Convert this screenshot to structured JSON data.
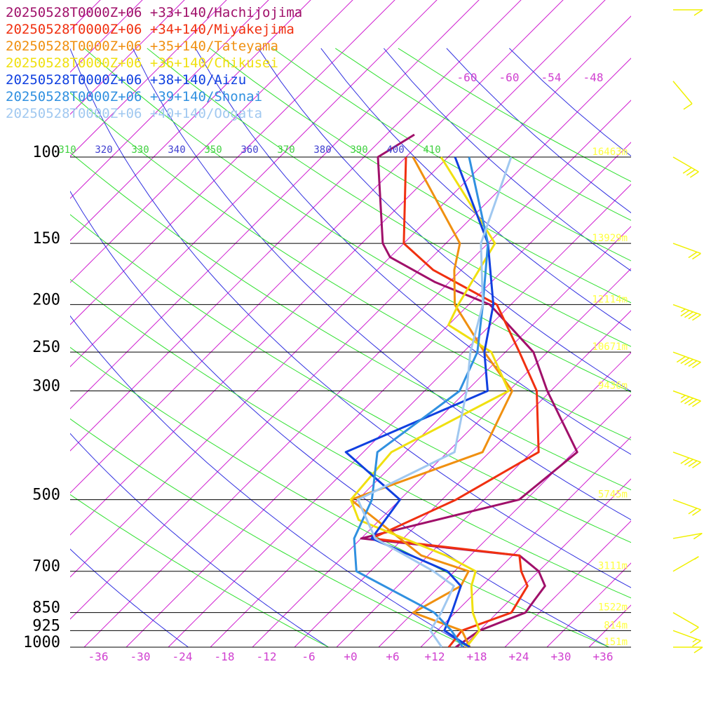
{
  "colors": {
    "isobar": "#000000",
    "isotherm": "#d020d0",
    "dry_adiabat": "#3030e0",
    "moist_adiabat": "#30e030",
    "height_label": "#ffff40",
    "wind_barb": "#f0f000",
    "temp_label": "#d040d0",
    "theta_label_blue": "#4040d0",
    "theta_label_green": "#40d040"
  },
  "legend": [
    {
      "label": "20250528T0000Z+06 +33+140/Hachijojima",
      "color": "#a0106a"
    },
    {
      "label": "20250528T0000Z+06 +34+140/Miyakejima",
      "color": "#f03010"
    },
    {
      "label": "20250528T0000Z+06 +35+140/Tateyama",
      "color": "#f09010"
    },
    {
      "label": "20250528T0000Z+06 +36+140/Chikusei",
      "color": "#f0e010"
    },
    {
      "label": "20250528T0000Z+06 +38+140/Aizu",
      "color": "#1040e0"
    },
    {
      "label": "20250528T0000Z+06 +39+140/Shonai",
      "color": "#3090e0"
    },
    {
      "label": "20250528T0000Z+06 +40+140/Oogata",
      "color": "#a0c8f0"
    }
  ],
  "axes": {
    "pressure_labels": [
      "100",
      "150",
      "200",
      "250",
      "300",
      "500",
      "700",
      "850",
      "925",
      "1000"
    ],
    "pressure_values": [
      100,
      150,
      200,
      250,
      300,
      500,
      700,
      850,
      925,
      1000
    ],
    "temp_labels": [
      "-36",
      "-30",
      "-24",
      "-18",
      "-12",
      "-6",
      "+0",
      "+6",
      "+12",
      "+18",
      "+24",
      "+30",
      "+36"
    ],
    "temp_values": [
      -36,
      -30,
      -24,
      -18,
      -12,
      -6,
      0,
      6,
      12,
      18,
      24,
      30,
      36
    ],
    "upper_temp_labels": [
      "-60",
      "-60",
      "-54",
      "-48"
    ],
    "theta_labels": [
      {
        "text": "310",
        "color": "theta_label_green"
      },
      {
        "text": "320",
        "color": "theta_label_blue"
      },
      {
        "text": "330",
        "color": "theta_label_green"
      },
      {
        "text": "340",
        "color": "theta_label_blue"
      },
      {
        "text": "350",
        "color": "theta_label_green"
      },
      {
        "text": "360",
        "color": "theta_label_blue"
      },
      {
        "text": "370",
        "color": "theta_label_green"
      },
      {
        "text": "380",
        "color": "theta_label_blue"
      },
      {
        "text": "390",
        "color": "theta_label_green"
      },
      {
        "text": "400",
        "color": "theta_label_blue"
      },
      {
        "text": "410",
        "color": "theta_label_green"
      }
    ],
    "height_labels": [
      {
        "p": 100,
        "text": "16463m"
      },
      {
        "p": 150,
        "text": "13929m"
      },
      {
        "p": 200,
        "text": "12114m"
      },
      {
        "p": 250,
        "text": "10671m"
      },
      {
        "p": 300,
        "text": "9436m"
      },
      {
        "p": 500,
        "text": "5745m"
      },
      {
        "p": 700,
        "text": "3111m"
      },
      {
        "p": 850,
        "text": "1522m"
      },
      {
        "p": 925,
        "text": "814m"
      },
      {
        "p": 1000,
        "text": "151m"
      }
    ]
  },
  "chart_data": {
    "type": "line",
    "title": "",
    "xlabel": "",
    "ylabel": "",
    "x_unit": "°C (skewed)",
    "y_unit": "hPa",
    "ylim": [
      1000,
      100
    ],
    "xlim": [
      -40,
      40
    ],
    "series": [
      {
        "name": "20250528T0000Z+06 +33+140/Hachijojima",
        "points": [
          [
            1000,
            15.0
          ],
          [
            925,
            16.0
          ],
          [
            850,
            20.0
          ],
          [
            800,
            19.5
          ],
          [
            750,
            19.0
          ],
          [
            700,
            16.0
          ],
          [
            650,
            11.0
          ],
          [
            600,
            -14.0
          ],
          [
            500,
            3.0
          ],
          [
            400,
            4.5
          ],
          [
            300,
            -8.5
          ],
          [
            250,
            -16.0
          ],
          [
            200,
            -29.0
          ],
          [
            180,
            -40.0
          ],
          [
            160,
            -50.0
          ],
          [
            150,
            -53.0
          ],
          [
            100,
            -66.0
          ],
          [
            90,
            -64.0
          ]
        ]
      },
      {
        "name": "20250528T0000Z+06 +34+140/Miyakejima",
        "points": [
          [
            1000,
            14.0
          ],
          [
            925,
            13.5
          ],
          [
            850,
            18.0
          ],
          [
            750,
            16.5
          ],
          [
            700,
            13.5
          ],
          [
            650,
            11.0
          ],
          [
            600,
            -12.5
          ],
          [
            500,
            -6.0
          ],
          [
            400,
            -1.0
          ],
          [
            300,
            -10.0
          ],
          [
            250,
            -18.0
          ],
          [
            200,
            -28.0
          ],
          [
            170,
            -42.0
          ],
          [
            150,
            -50.0
          ],
          [
            100,
            -62.0
          ]
        ]
      },
      {
        "name": "20250528T0000Z+06 +35+140/Tateyama",
        "points": [
          [
            1000,
            17.0
          ],
          [
            925,
            13.5
          ],
          [
            850,
            4.0
          ],
          [
            750,
            7.0
          ],
          [
            700,
            6.0
          ],
          [
            650,
            -3.0
          ],
          [
            500,
            -21.0
          ],
          [
            400,
            -9.0
          ],
          [
            300,
            -13.5
          ],
          [
            250,
            -23.0
          ],
          [
            200,
            -34.0
          ],
          [
            170,
            -39.0
          ],
          [
            150,
            -42.0
          ],
          [
            100,
            -61.0
          ]
        ]
      },
      {
        "name": "20250528T0000Z+06 +36+140/Chikusei",
        "points": [
          [
            1000,
            16.5
          ],
          [
            925,
            16.0
          ],
          [
            850,
            12.5
          ],
          [
            750,
            8.5
          ],
          [
            700,
            7.0
          ],
          [
            650,
            0.5
          ],
          [
            550,
            -17.0
          ],
          [
            500,
            -21.0
          ],
          [
            400,
            -22.0
          ],
          [
            300,
            -14.0
          ],
          [
            250,
            -22.0
          ],
          [
            220,
            -32.0
          ],
          [
            200,
            -33.5
          ],
          [
            150,
            -37.0
          ],
          [
            100,
            -57.0
          ]
        ]
      },
      {
        "name": "20250528T0000Z+06 +38+140/Aizu",
        "points": [
          [
            1000,
            17.0
          ],
          [
            925,
            11.0
          ],
          [
            850,
            9.5
          ],
          [
            750,
            7.0
          ],
          [
            700,
            3.0
          ],
          [
            600,
            -12.5
          ],
          [
            500,
            -14.0
          ],
          [
            400,
            -28.5
          ],
          [
            300,
            -17.0
          ],
          [
            250,
            -23.0
          ],
          [
            200,
            -28.5
          ],
          [
            150,
            -38.0
          ],
          [
            100,
            -55.0
          ]
        ]
      },
      {
        "name": "20250528T0000Z+06 +39+140/Shonai",
        "points": [
          [
            1000,
            16.0
          ],
          [
            925,
            12.0
          ],
          [
            850,
            7.0
          ],
          [
            700,
            -10.0
          ],
          [
            600,
            -15.0
          ],
          [
            500,
            -18.0
          ],
          [
            400,
            -24.0
          ],
          [
            300,
            -21.0
          ],
          [
            250,
            -24.0
          ],
          [
            200,
            -30.0
          ],
          [
            150,
            -38.0
          ],
          [
            100,
            -53.0
          ]
        ]
      },
      {
        "name": "20250528T0000Z+06 +40+140/Oogata",
        "points": [
          [
            1000,
            13.0
          ],
          [
            925,
            9.0
          ],
          [
            850,
            8.0
          ],
          [
            750,
            6.0
          ],
          [
            700,
            1.0
          ],
          [
            600,
            -12.0
          ],
          [
            500,
            -20.0
          ],
          [
            400,
            -13.0
          ],
          [
            300,
            -20.0
          ],
          [
            250,
            -25.0
          ],
          [
            200,
            -30.0
          ],
          [
            150,
            -39.0
          ],
          [
            100,
            -47.0
          ]
        ]
      }
    ],
    "wind_barbs": [
      {
        "p": 1000,
        "dir": 270,
        "speed_kt": 10
      },
      {
        "p": 925,
        "dir": 250,
        "speed_kt": 15
      },
      {
        "p": 850,
        "dir": 240,
        "speed_kt": 10
      },
      {
        "p": 700,
        "dir": 300,
        "speed_kt": 5
      },
      {
        "p": 600,
        "dir": 280,
        "speed_kt": 10
      },
      {
        "p": 500,
        "dir": 250,
        "speed_kt": 20
      },
      {
        "p": 400,
        "dir": 250,
        "speed_kt": 40
      },
      {
        "p": 300,
        "dir": 250,
        "speed_kt": 45
      },
      {
        "p": 250,
        "dir": 250,
        "speed_kt": 50
      },
      {
        "p": 200,
        "dir": 250,
        "speed_kt": 45
      },
      {
        "p": 150,
        "dir": 250,
        "speed_kt": 20
      },
      {
        "p": 100,
        "dir": 240,
        "speed_kt": 30
      },
      {
        "p": 70,
        "dir": 220,
        "speed_kt": 10
      },
      {
        "p": 50,
        "dir": 270,
        "speed_kt": 10
      }
    ],
    "grid": true,
    "legend_position": "top-left"
  }
}
